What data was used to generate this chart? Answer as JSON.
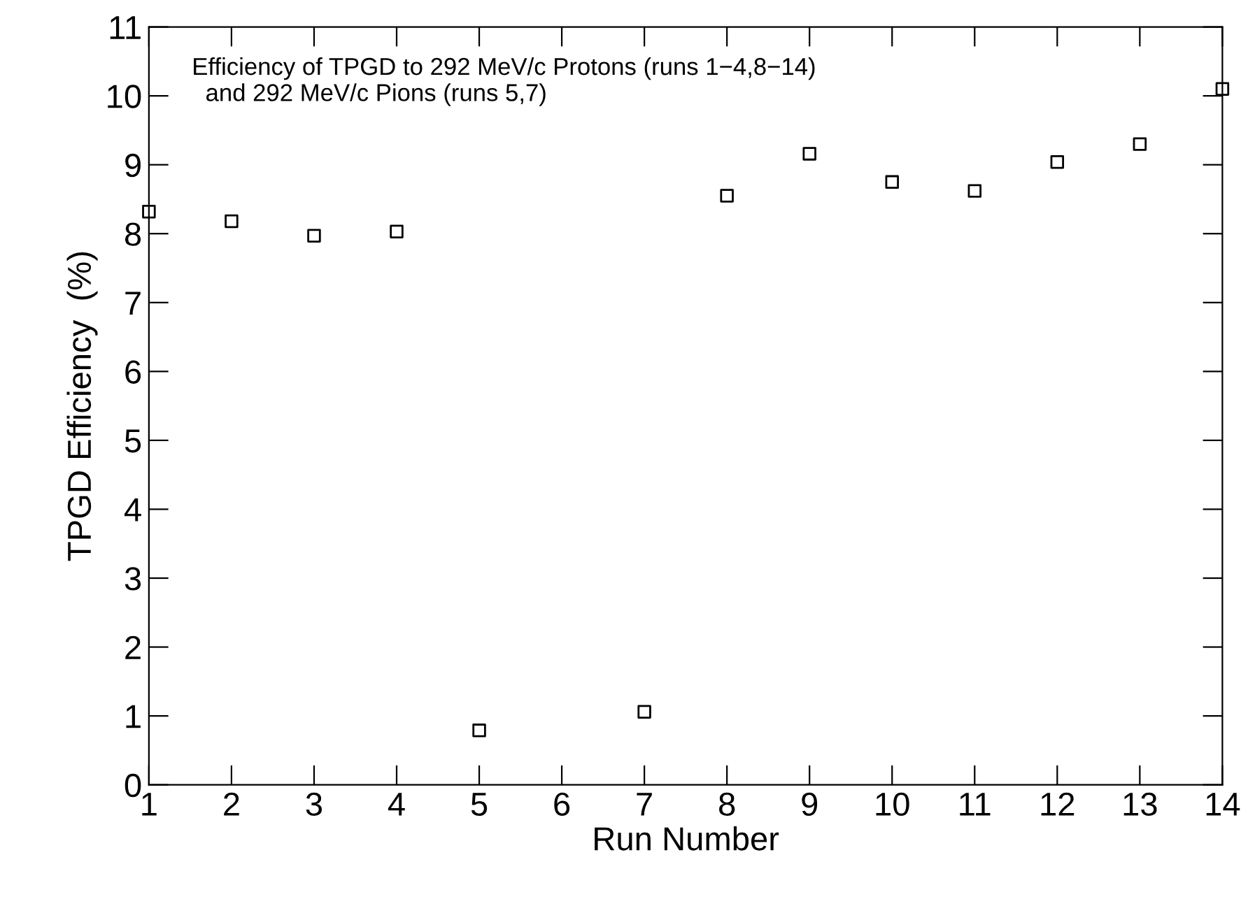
{
  "chart_data": {
    "type": "scatter",
    "xlabel": "Run Number",
    "ylabel": "TPGD Efficiency  (%)",
    "annotations": [
      "Efficiency of TPGD to 292 MeV/c Protons (runs 1−4,8−14)\n  and 292 MeV/c Pions (runs 5,7)"
    ],
    "x": [
      1,
      2,
      3,
      4,
      5,
      7,
      8,
      9,
      10,
      11,
      12,
      13,
      14
    ],
    "series": [
      {
        "color": "#000000",
        "values": [
          8.32,
          8.18,
          7.97,
          8.03,
          0.79,
          1.06,
          8.55,
          9.16,
          8.75,
          8.62,
          9.04,
          9.3,
          10.1
        ]
      }
    ],
    "marker": "square",
    "xlim": [
      1,
      14
    ],
    "xticks": [
      1,
      2,
      3,
      4,
      5,
      6,
      7,
      8,
      9,
      10,
      11,
      12,
      13,
      14
    ],
    "ylim": [
      0,
      11
    ],
    "yticks": [
      0,
      1,
      2,
      3,
      4,
      5,
      6,
      7,
      8,
      9,
      10,
      11
    ],
    "grid": false
  }
}
